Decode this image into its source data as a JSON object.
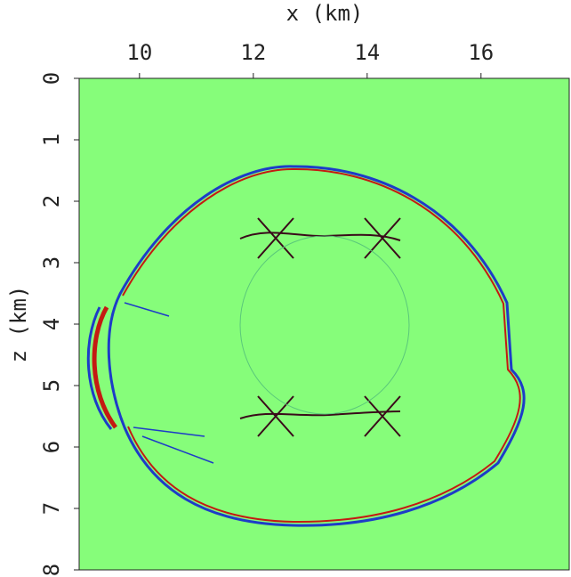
{
  "chart_data": {
    "type": "image",
    "xlabel": "x (km)",
    "ylabel": "z (km)",
    "xlim": [
      8.94,
      17.55
    ],
    "xticks": [
      10,
      12,
      14,
      16
    ],
    "ylim": [
      0,
      8
    ],
    "yticks": [
      0,
      1,
      2,
      3,
      4,
      5,
      6,
      7,
      8
    ],
    "color": "#86fd7a"
  }
}
